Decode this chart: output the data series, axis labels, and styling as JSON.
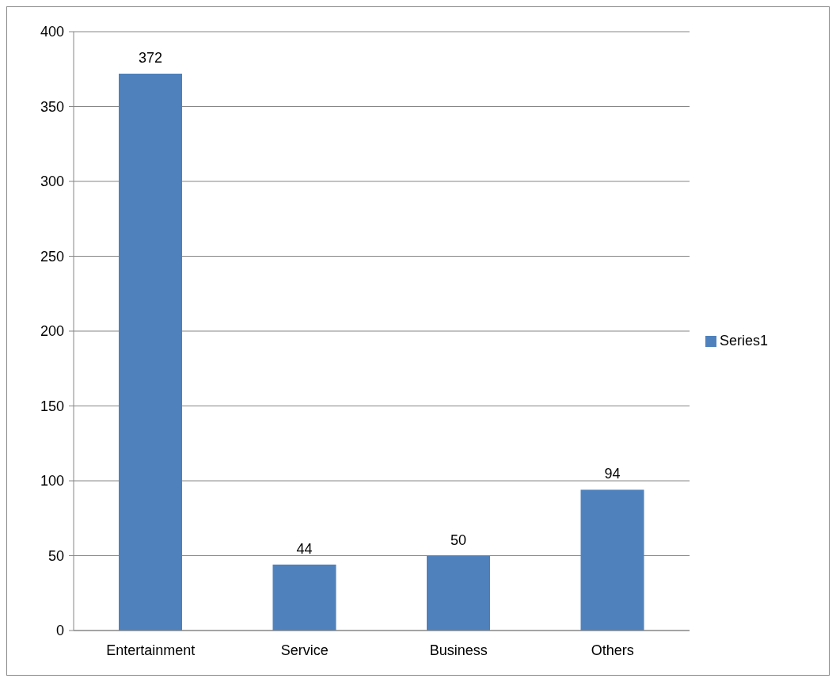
{
  "chart_data": {
    "type": "bar",
    "categories": [
      "Entertainment",
      "Service",
      "Business",
      "Others"
    ],
    "series": [
      {
        "name": "Series1",
        "color": "#4f81bd",
        "values": [
          372,
          44,
          50,
          94
        ]
      }
    ],
    "ylim": [
      0,
      400
    ],
    "yticks": [
      0,
      50,
      100,
      150,
      200,
      250,
      300,
      350,
      400
    ],
    "grid": "y",
    "legend": "right",
    "data_labels": true
  }
}
